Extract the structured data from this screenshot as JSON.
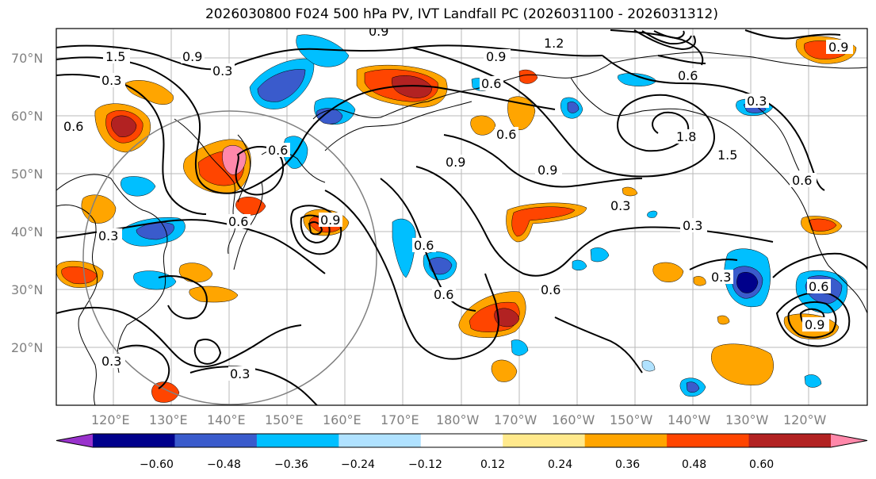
{
  "title": "2026030800 F024 500 hPa PV, IVT Landfall PC (2026031100 - 2026031312)",
  "lat_labels": [
    "70°N",
    "60°N",
    "50°N",
    "40°N",
    "30°N",
    "20°N"
  ],
  "lon_labels": [
    "120°E",
    "130°E",
    "140°E",
    "150°E",
    "160°E",
    "170°E",
    "180°W",
    "170°W",
    "160°W",
    "150°W",
    "140°W",
    "130°W",
    "120°W"
  ],
  "contour_labels": [
    "0.9",
    "1.2",
    "0.9",
    "0.6",
    "0.6",
    "1.5",
    "0.3",
    "0.9",
    "0.3",
    "0.6",
    "0.9",
    "0.3",
    "0.6",
    "0.9",
    "0.6",
    "0.6",
    "1.8",
    "1.5",
    "0.6",
    "0.9",
    "0.3",
    "0.3",
    "0.3",
    "0.6",
    "0.6",
    "0.6",
    "0.9",
    "0.3",
    "0.3",
    "0.3",
    "0.9",
    "0.6"
  ],
  "colorbar": {
    "ticks": [
      "−0.60",
      "−0.48",
      "−0.36",
      "−0.24",
      "−0.12",
      "0.12",
      "0.24",
      "0.36",
      "0.48",
      "0.60"
    ],
    "colors": [
      "#9932cc",
      "#00008b",
      "#3a5bcc",
      "#00bfff",
      "#b0e2ff",
      "#ffffff",
      "#ffe98c",
      "#ffa500",
      "#ff4500",
      "#b22222",
      "#ff88aa"
    ]
  },
  "colors": {
    "neg_strong": "#00008b",
    "neg_mid": "#3a5bcc",
    "neg_light": "#00bfff",
    "neg_pale": "#b0e2ff",
    "pos_pale": "#ffe98c",
    "pos_light": "#ffa500",
    "pos_mid": "#ff4500",
    "pos_strong": "#b22222",
    "pos_max": "#ff88aa"
  }
}
